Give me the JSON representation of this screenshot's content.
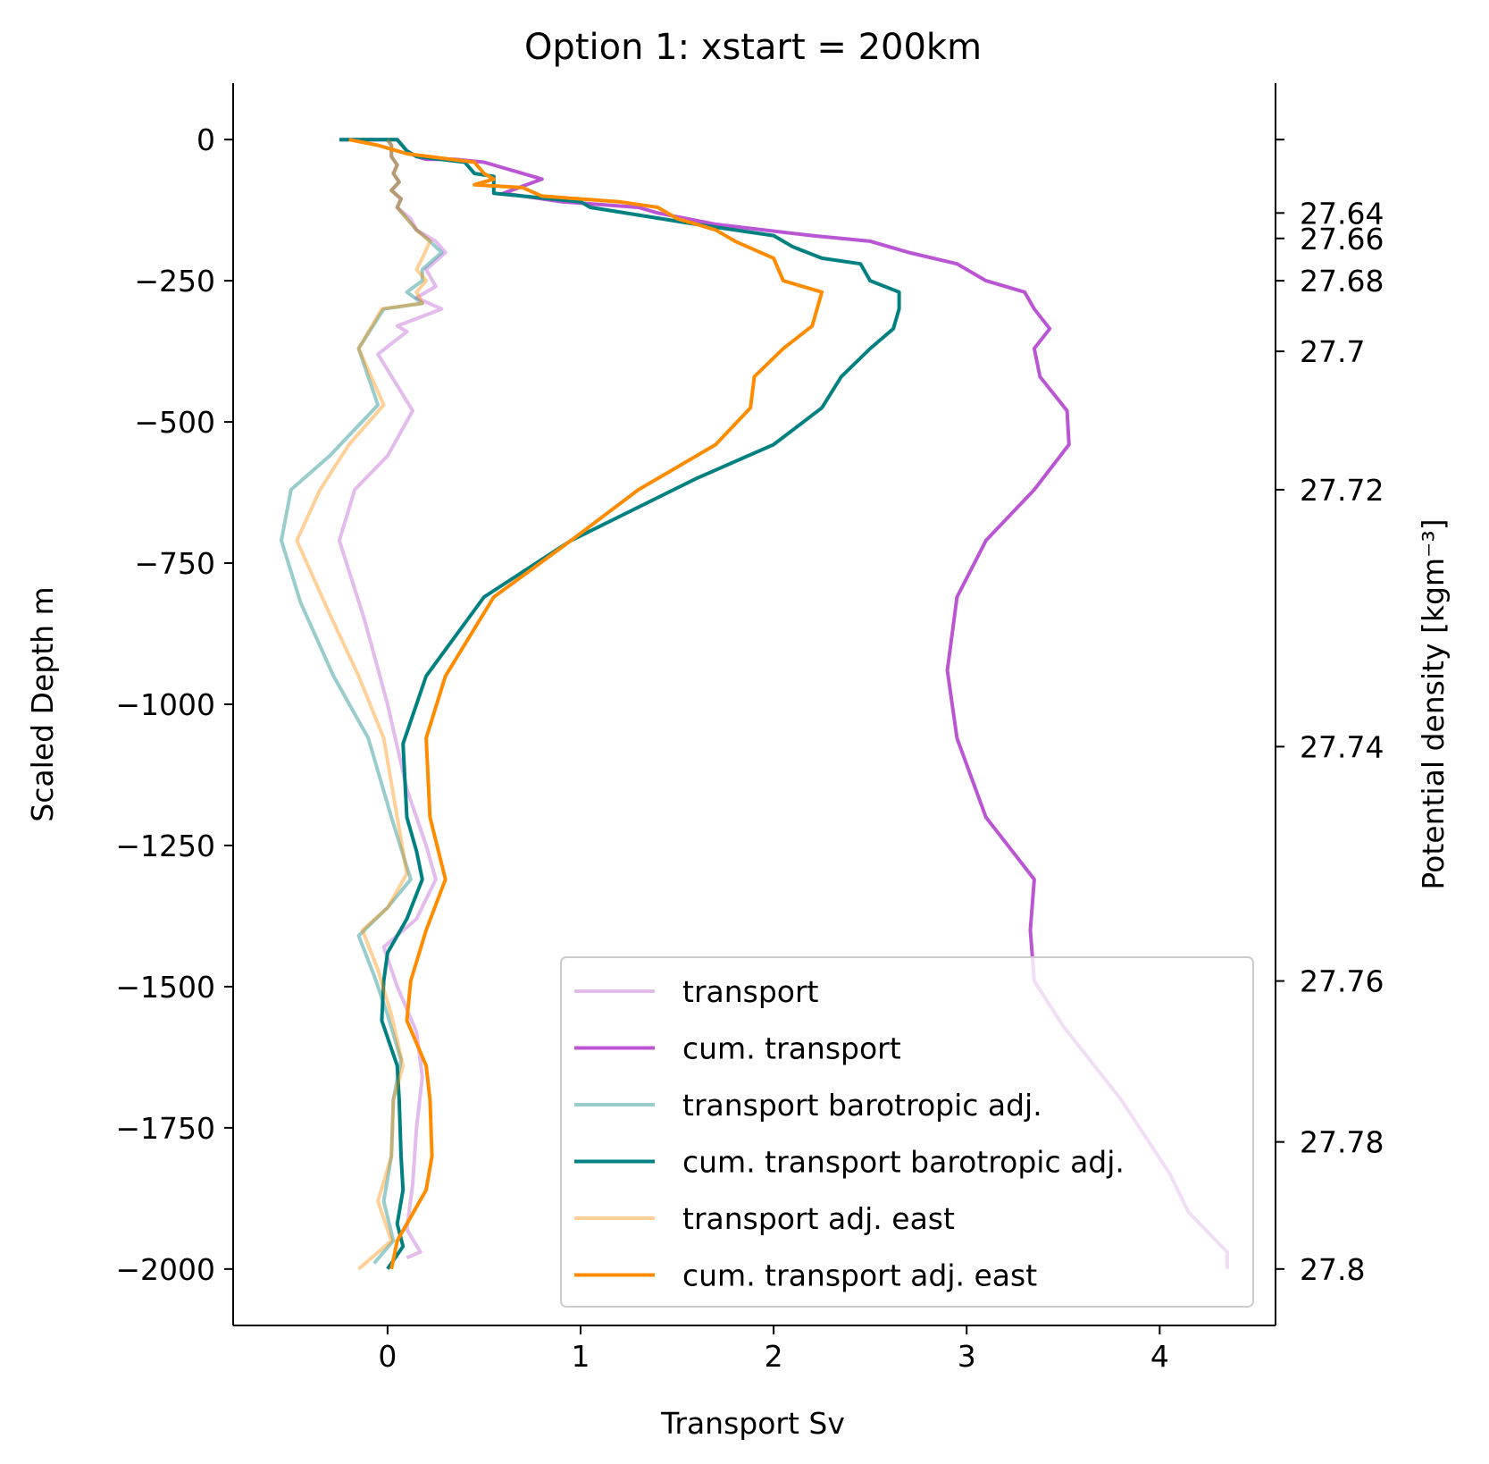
{
  "chart_data": {
    "type": "line",
    "title": "Option 1: xstart = 200km",
    "xlabel": "Transport Sv",
    "ylabel": "Scaled Depth m",
    "y2label": "Potential density [kgm⁻³]",
    "xlim": [
      -0.8,
      4.6
    ],
    "ylim": [
      -2100,
      100
    ],
    "xticks": [
      0,
      1,
      2,
      3,
      4
    ],
    "xtick_labels": [
      "0",
      "1",
      "2",
      "3",
      "4"
    ],
    "yticks": [
      0,
      -250,
      -500,
      -750,
      -1000,
      -1250,
      -1500,
      -1750,
      -2000
    ],
    "ytick_labels": [
      "0",
      "−250",
      "−500",
      "−750",
      "−1000",
      "−1250",
      "−1500",
      "−1750",
      "−2000"
    ],
    "y2ticks": [
      {
        "depth": 0,
        "label": ""
      },
      {
        "depth": -130,
        "label": "27.64"
      },
      {
        "depth": -175,
        "label": "27.66"
      },
      {
        "depth": -250,
        "label": "27.68"
      },
      {
        "depth": -375,
        "label": "27.7"
      },
      {
        "depth": -620,
        "label": "27.72"
      },
      {
        "depth": -1075,
        "label": "27.74"
      },
      {
        "depth": -1490,
        "label": "27.76"
      },
      {
        "depth": -1775,
        "label": "27.78"
      },
      {
        "depth": -2000,
        "label": "27.8"
      }
    ],
    "grid": false,
    "legend_position": "lower-right",
    "series": [
      {
        "name": "transport",
        "color": "#ba55d3",
        "opacity": 0.4,
        "points": [
          [
            0.0,
            0
          ],
          [
            0.02,
            -10
          ],
          [
            0.02,
            -30
          ],
          [
            0.05,
            -45
          ],
          [
            0.03,
            -60
          ],
          [
            0.06,
            -75
          ],
          [
            0.02,
            -90
          ],
          [
            0.07,
            -105
          ],
          [
            0.05,
            -120
          ],
          [
            0.12,
            -140
          ],
          [
            0.15,
            -160
          ],
          [
            0.25,
            -180
          ],
          [
            0.3,
            -200
          ],
          [
            0.2,
            -230
          ],
          [
            0.25,
            -260
          ],
          [
            0.15,
            -280
          ],
          [
            0.28,
            -300
          ],
          [
            0.05,
            -330
          ],
          [
            0.1,
            -340
          ],
          [
            -0.05,
            -380
          ],
          [
            0.13,
            -480
          ],
          [
            0.0,
            -560
          ],
          [
            -0.17,
            -620
          ],
          [
            -0.25,
            -710
          ],
          [
            -0.12,
            -850
          ],
          [
            0.0,
            -1000
          ],
          [
            0.1,
            -1150
          ],
          [
            0.2,
            -1250
          ],
          [
            0.25,
            -1310
          ],
          [
            0.15,
            -1380
          ],
          [
            -0.02,
            -1430
          ],
          [
            0.05,
            -1500
          ],
          [
            0.15,
            -1580
          ],
          [
            0.18,
            -1660
          ],
          [
            0.15,
            -1750
          ],
          [
            0.13,
            -1850
          ],
          [
            0.1,
            -1930
          ],
          [
            0.17,
            -1970
          ],
          [
            0.1,
            -1980
          ]
        ]
      },
      {
        "name": "cum. transport",
        "color": "#ba55d3",
        "opacity": 1.0,
        "points": [
          [
            -0.25,
            0
          ],
          [
            0.05,
            0
          ],
          [
            0.1,
            -20
          ],
          [
            0.15,
            -30
          ],
          [
            0.2,
            -35
          ],
          [
            0.35,
            -35
          ],
          [
            0.5,
            -40
          ],
          [
            0.7,
            -60
          ],
          [
            0.8,
            -70
          ],
          [
            0.6,
            -95
          ],
          [
            0.9,
            -110
          ],
          [
            1.3,
            -120
          ],
          [
            1.4,
            -130
          ],
          [
            1.7,
            -150
          ],
          [
            2.2,
            -170
          ],
          [
            2.5,
            -180
          ],
          [
            2.7,
            -200
          ],
          [
            2.95,
            -220
          ],
          [
            3.1,
            -250
          ],
          [
            3.3,
            -270
          ],
          [
            3.35,
            -300
          ],
          [
            3.43,
            -335
          ],
          [
            3.35,
            -370
          ],
          [
            3.38,
            -420
          ],
          [
            3.52,
            -480
          ],
          [
            3.53,
            -540
          ],
          [
            3.35,
            -620
          ],
          [
            3.1,
            -710
          ],
          [
            2.95,
            -810
          ],
          [
            2.9,
            -940
          ],
          [
            2.95,
            -1060
          ],
          [
            3.1,
            -1200
          ],
          [
            3.35,
            -1310
          ],
          [
            3.33,
            -1400
          ],
          [
            3.35,
            -1490
          ],
          [
            3.5,
            -1570
          ],
          [
            3.8,
            -1700
          ],
          [
            4.05,
            -1830
          ],
          [
            4.15,
            -1900
          ],
          [
            4.35,
            -1970
          ],
          [
            4.35,
            -2000
          ]
        ]
      },
      {
        "name": "transport barotropic adj.",
        "color": "#008080",
        "opacity": 0.4,
        "points": [
          [
            0.0,
            0
          ],
          [
            0.02,
            -10
          ],
          [
            0.02,
            -30
          ],
          [
            0.05,
            -45
          ],
          [
            0.03,
            -60
          ],
          [
            0.06,
            -75
          ],
          [
            0.02,
            -90
          ],
          [
            0.07,
            -105
          ],
          [
            0.05,
            -120
          ],
          [
            0.1,
            -140
          ],
          [
            0.15,
            -160
          ],
          [
            0.22,
            -180
          ],
          [
            0.28,
            -200
          ],
          [
            0.18,
            -230
          ],
          [
            0.18,
            -250
          ],
          [
            0.1,
            -270
          ],
          [
            0.18,
            -290
          ],
          [
            -0.02,
            -300
          ],
          [
            -0.15,
            -370
          ],
          [
            -0.05,
            -470
          ],
          [
            -0.3,
            -560
          ],
          [
            -0.5,
            -620
          ],
          [
            -0.55,
            -710
          ],
          [
            -0.45,
            -820
          ],
          [
            -0.28,
            -950
          ],
          [
            -0.1,
            -1060
          ],
          [
            0.02,
            -1200
          ],
          [
            0.12,
            -1310
          ],
          [
            0.0,
            -1360
          ],
          [
            -0.15,
            -1410
          ],
          [
            -0.07,
            -1480
          ],
          [
            0.0,
            -1550
          ],
          [
            0.07,
            -1630
          ],
          [
            0.03,
            -1700
          ],
          [
            0.02,
            -1800
          ],
          [
            -0.02,
            -1880
          ],
          [
            0.03,
            -1950
          ],
          [
            -0.07,
            -1990
          ]
        ]
      },
      {
        "name": "cum. transport barotropic adj.",
        "color": "#008080",
        "opacity": 1.0,
        "points": [
          [
            -0.25,
            0
          ],
          [
            0.05,
            0
          ],
          [
            0.1,
            -20
          ],
          [
            0.15,
            -30
          ],
          [
            0.4,
            -40
          ],
          [
            0.45,
            -60
          ],
          [
            0.55,
            -65
          ],
          [
            0.55,
            -95
          ],
          [
            0.7,
            -100
          ],
          [
            1.0,
            -110
          ],
          [
            1.05,
            -120
          ],
          [
            1.6,
            -150
          ],
          [
            2.0,
            -170
          ],
          [
            2.1,
            -190
          ],
          [
            2.25,
            -210
          ],
          [
            2.45,
            -220
          ],
          [
            2.5,
            -250
          ],
          [
            2.65,
            -270
          ],
          [
            2.65,
            -300
          ],
          [
            2.62,
            -335
          ],
          [
            2.5,
            -370
          ],
          [
            2.35,
            -420
          ],
          [
            2.25,
            -475
          ],
          [
            2.0,
            -540
          ],
          [
            1.6,
            -600
          ],
          [
            0.95,
            -710
          ],
          [
            0.5,
            -810
          ],
          [
            0.2,
            -950
          ],
          [
            0.08,
            -1070
          ],
          [
            0.1,
            -1200
          ],
          [
            0.15,
            -1260
          ],
          [
            0.18,
            -1310
          ],
          [
            0.1,
            -1380
          ],
          [
            0.0,
            -1440
          ],
          [
            -0.02,
            -1490
          ],
          [
            -0.03,
            -1560
          ],
          [
            0.05,
            -1640
          ],
          [
            0.06,
            -1700
          ],
          [
            0.07,
            -1800
          ],
          [
            0.08,
            -1860
          ],
          [
            0.05,
            -1920
          ],
          [
            0.08,
            -1960
          ],
          [
            0.0,
            -2000
          ]
        ]
      },
      {
        "name": "transport adj. east",
        "color": "#ff8c00",
        "opacity": 0.4,
        "points": [
          [
            0.0,
            0
          ],
          [
            0.02,
            -10
          ],
          [
            0.02,
            -30
          ],
          [
            0.05,
            -45
          ],
          [
            0.03,
            -60
          ],
          [
            0.06,
            -75
          ],
          [
            0.02,
            -90
          ],
          [
            0.07,
            -105
          ],
          [
            0.05,
            -120
          ],
          [
            0.1,
            -140
          ],
          [
            0.15,
            -160
          ],
          [
            0.22,
            -180
          ],
          [
            0.18,
            -210
          ],
          [
            0.15,
            -230
          ],
          [
            0.2,
            -250
          ],
          [
            0.15,
            -270
          ],
          [
            0.18,
            -290
          ],
          [
            -0.03,
            -300
          ],
          [
            -0.15,
            -370
          ],
          [
            -0.02,
            -470
          ],
          [
            -0.2,
            -540
          ],
          [
            -0.35,
            -620
          ],
          [
            -0.47,
            -710
          ],
          [
            -0.3,
            -840
          ],
          [
            -0.15,
            -950
          ],
          [
            -0.02,
            -1060
          ],
          [
            0.05,
            -1200
          ],
          [
            0.1,
            -1300
          ],
          [
            0.0,
            -1360
          ],
          [
            -0.13,
            -1400
          ],
          [
            -0.05,
            -1470
          ],
          [
            0.02,
            -1550
          ],
          [
            0.08,
            -1640
          ],
          [
            0.03,
            -1700
          ],
          [
            0.02,
            -1800
          ],
          [
            -0.05,
            -1880
          ],
          [
            0.02,
            -1950
          ],
          [
            -0.15,
            -2000
          ]
        ]
      },
      {
        "name": "cum. transport adj. east",
        "color": "#ff8c00",
        "opacity": 1.0,
        "points": [
          [
            -0.2,
            0
          ],
          [
            -0.2,
            0
          ],
          [
            -0.05,
            -10
          ],
          [
            0.0,
            -15
          ],
          [
            0.1,
            -25
          ],
          [
            0.45,
            -40
          ],
          [
            0.5,
            -60
          ],
          [
            0.55,
            -70
          ],
          [
            0.45,
            -80
          ],
          [
            0.7,
            -85
          ],
          [
            0.8,
            -100
          ],
          [
            1.2,
            -110
          ],
          [
            1.4,
            -120
          ],
          [
            1.5,
            -140
          ],
          [
            1.7,
            -160
          ],
          [
            1.8,
            -180
          ],
          [
            2.0,
            -210
          ],
          [
            2.05,
            -250
          ],
          [
            2.25,
            -270
          ],
          [
            2.2,
            -330
          ],
          [
            2.05,
            -370
          ],
          [
            1.9,
            -420
          ],
          [
            1.88,
            -475
          ],
          [
            1.7,
            -540
          ],
          [
            1.3,
            -620
          ],
          [
            0.95,
            -710
          ],
          [
            0.55,
            -810
          ],
          [
            0.3,
            -950
          ],
          [
            0.2,
            -1060
          ],
          [
            0.22,
            -1200
          ],
          [
            0.3,
            -1310
          ],
          [
            0.2,
            -1400
          ],
          [
            0.12,
            -1490
          ],
          [
            0.1,
            -1560
          ],
          [
            0.2,
            -1640
          ],
          [
            0.22,
            -1700
          ],
          [
            0.23,
            -1800
          ],
          [
            0.2,
            -1860
          ],
          [
            0.05,
            -1950
          ],
          [
            0.02,
            -2000
          ]
        ]
      }
    ]
  }
}
